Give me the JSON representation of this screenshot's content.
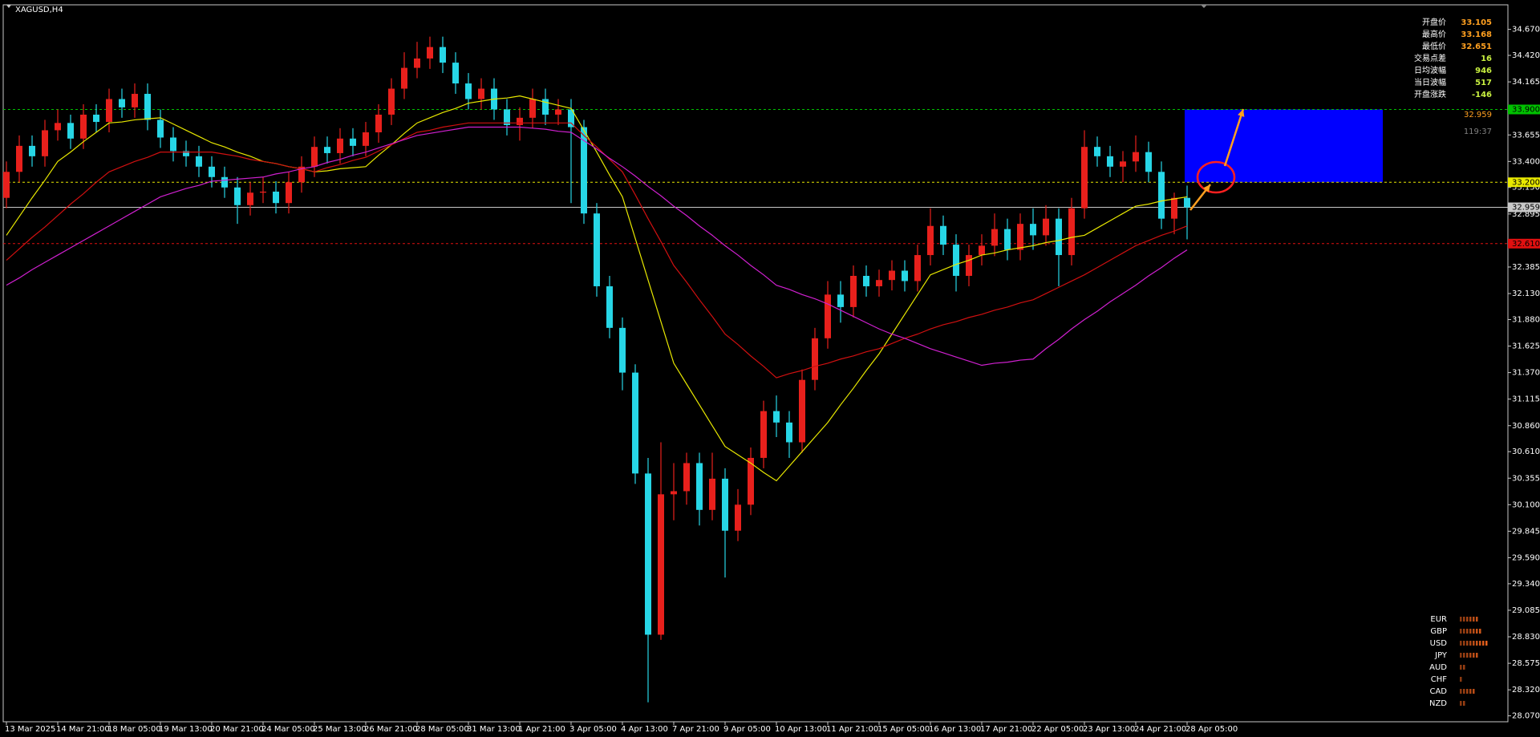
{
  "chart_data": {
    "type": "candlestick",
    "title": "XAGUSD,H4",
    "categories": [
      "13 Mar 2025",
      null,
      null,
      null,
      "14 Mar 21:00",
      null,
      null,
      null,
      "18 Mar 05:00",
      null,
      null,
      null,
      "19 Mar 13:00",
      null,
      null,
      null,
      "20 Mar 21:00",
      null,
      null,
      null,
      "24 Mar 05:00",
      null,
      null,
      null,
      "25 Mar 13:00",
      null,
      null,
      null,
      "26 Mar 21:00",
      null,
      null,
      null,
      "28 Mar 05:00",
      null,
      null,
      null,
      "31 Mar 13:00",
      null,
      null,
      null,
      "1 Apr 21:00",
      null,
      null,
      null,
      "3 Apr 05:00",
      null,
      null,
      null,
      "4 Apr 13:00",
      null,
      null,
      null,
      "7 Apr 21:00",
      null,
      null,
      null,
      "9 Apr 05:00",
      null,
      null,
      null,
      "10 Apr 13:00",
      null,
      null,
      null,
      "11 Apr 21:00",
      null,
      null,
      null,
      "15 Apr 05:00",
      null,
      null,
      null,
      "16 Apr 13:00",
      null,
      null,
      null,
      "17 Apr 21:00",
      null,
      null,
      null,
      "22 Apr 05:00",
      null,
      null,
      null,
      "23 Apr 13:00",
      null,
      null,
      null,
      "24 Apr 21:00",
      null,
      null,
      null,
      "28 Apr 05:00"
    ],
    "open": [
      33.05,
      33.3,
      33.55,
      33.45,
      33.7,
      33.77,
      33.62,
      33.85,
      33.78,
      34.0,
      33.92,
      34.05,
      33.8,
      33.63,
      33.5,
      33.45,
      33.35,
      33.25,
      33.15,
      32.98,
      33.1,
      33.11,
      33.0,
      33.2,
      33.35,
      33.54,
      33.48,
      33.62,
      33.55,
      33.68,
      33.85,
      34.1,
      34.3,
      34.39,
      34.5,
      34.35,
      34.15,
      34.0,
      34.1,
      33.9,
      33.75,
      33.82,
      34.0,
      33.85,
      33.9,
      33.73,
      32.9,
      32.2,
      31.8,
      31.37,
      30.4,
      28.85,
      30.2,
      30.23,
      30.5,
      30.05,
      30.35,
      29.85,
      30.1,
      30.55,
      31.0,
      30.89,
      30.7,
      31.3,
      31.7,
      32.12,
      32.0,
      32.3,
      32.2,
      32.26,
      32.35,
      32.25,
      32.5,
      32.78,
      32.6,
      32.3,
      32.5,
      32.59,
      32.75,
      32.55,
      32.8,
      32.69,
      32.85,
      32.5,
      32.95,
      33.54,
      33.45,
      33.35,
      33.4,
      33.49,
      33.3,
      32.85,
      33.05
    ],
    "high": [
      33.4,
      33.65,
      33.65,
      33.8,
      33.9,
      33.85,
      33.95,
      33.95,
      34.1,
      34.1,
      34.15,
      34.15,
      33.9,
      33.73,
      33.6,
      33.55,
      33.45,
      33.35,
      33.25,
      33.2,
      33.25,
      33.21,
      33.3,
      33.45,
      33.64,
      33.64,
      33.72,
      33.72,
      33.78,
      33.95,
      34.2,
      34.45,
      34.55,
      34.6,
      34.6,
      34.45,
      34.25,
      34.2,
      34.2,
      34.0,
      33.92,
      34.1,
      34.1,
      34.0,
      34.0,
      33.8,
      33.0,
      32.3,
      31.9,
      31.45,
      30.55,
      30.7,
      30.5,
      30.6,
      30.6,
      30.6,
      30.45,
      30.25,
      30.65,
      31.1,
      31.15,
      31.0,
      31.4,
      31.8,
      32.25,
      32.25,
      32.4,
      32.4,
      32.36,
      32.45,
      32.45,
      32.6,
      32.95,
      32.88,
      32.7,
      32.6,
      32.7,
      32.9,
      32.85,
      32.9,
      32.95,
      32.98,
      32.95,
      33.05,
      33.7,
      33.64,
      33.55,
      33.5,
      33.65,
      33.59,
      33.4,
      33.1,
      33.168
    ],
    "low": [
      32.95,
      33.2,
      33.35,
      33.35,
      33.6,
      33.52,
      33.52,
      33.68,
      33.68,
      33.82,
      33.82,
      33.7,
      33.53,
      33.4,
      33.35,
      33.25,
      33.15,
      33.05,
      32.8,
      32.88,
      33.0,
      32.9,
      32.9,
      33.1,
      33.25,
      33.38,
      33.38,
      33.45,
      33.45,
      33.58,
      33.75,
      34.0,
      34.2,
      34.29,
      34.25,
      34.05,
      33.9,
      33.9,
      33.8,
      33.65,
      33.6,
      33.72,
      33.75,
      33.75,
      33.0,
      32.8,
      32.1,
      31.7,
      31.2,
      30.3,
      28.2,
      28.8,
      29.95,
      30.1,
      29.9,
      29.95,
      29.4,
      29.75,
      30.0,
      30.45,
      30.75,
      30.55,
      30.6,
      31.2,
      31.6,
      31.85,
      31.9,
      32.1,
      32.1,
      32.16,
      32.15,
      32.15,
      32.4,
      32.5,
      32.15,
      32.2,
      32.4,
      32.49,
      32.45,
      32.45,
      32.55,
      32.59,
      32.2,
      32.4,
      32.85,
      33.35,
      33.25,
      33.2,
      33.3,
      33.2,
      32.75,
      32.7,
      32.651
    ],
    "close": [
      33.3,
      33.55,
      33.45,
      33.7,
      33.77,
      33.62,
      33.85,
      33.78,
      34.0,
      33.92,
      34.05,
      33.8,
      33.63,
      33.5,
      33.45,
      33.35,
      33.25,
      33.15,
      32.98,
      33.1,
      33.11,
      33.0,
      33.2,
      33.35,
      33.54,
      33.48,
      33.62,
      33.55,
      33.68,
      33.85,
      34.1,
      34.3,
      34.39,
      34.5,
      34.35,
      34.15,
      34.0,
      34.1,
      33.9,
      33.75,
      33.82,
      34.0,
      33.85,
      33.9,
      33.73,
      32.9,
      32.2,
      31.8,
      31.37,
      30.4,
      28.85,
      30.2,
      30.23,
      30.5,
      30.05,
      30.35,
      29.85,
      30.1,
      30.55,
      31.0,
      30.89,
      30.7,
      31.3,
      31.7,
      32.12,
      32.0,
      32.3,
      32.2,
      32.26,
      32.35,
      32.25,
      32.5,
      32.78,
      32.6,
      32.3,
      32.5,
      32.59,
      32.75,
      32.55,
      32.8,
      32.69,
      32.85,
      32.5,
      32.95,
      33.54,
      33.45,
      33.35,
      33.4,
      33.49,
      33.3,
      32.85,
      33.05,
      32.959
    ],
    "up_color": "#e8201c",
    "down_color": "#27d6e6",
    "series": [
      {
        "color": "#e8e800",
        "values": [
          32.69,
          32.87,
          33.05,
          33.22,
          33.4,
          33.49,
          33.59,
          33.68,
          33.77,
          33.78,
          33.8,
          33.81,
          33.82,
          33.76,
          33.7,
          33.64,
          33.58,
          33.54,
          33.49,
          33.45,
          33.4,
          33.38,
          33.35,
          33.33,
          33.3,
          33.31,
          33.33,
          33.34,
          33.35,
          33.46,
          33.56,
          33.67,
          33.77,
          33.82,
          33.87,
          33.91,
          33.96,
          33.98,
          34.0,
          34.01,
          34.03,
          34.0,
          33.97,
          33.94,
          33.91,
          33.7,
          33.49,
          33.27,
          33.06,
          32.66,
          32.26,
          31.86,
          31.46,
          31.26,
          31.06,
          30.86,
          30.66,
          30.58,
          30.5,
          30.41,
          30.33,
          30.47,
          30.61,
          30.75,
          30.89,
          31.06,
          31.22,
          31.39,
          31.55,
          31.74,
          31.93,
          32.12,
          32.31,
          32.36,
          32.41,
          32.45,
          32.5,
          32.52,
          32.55,
          32.57,
          32.59,
          32.62,
          32.64,
          32.67,
          32.69,
          32.76,
          32.83,
          32.9,
          32.97,
          32.99,
          33.02,
          33.04,
          33.06
        ]
      },
      {
        "color": "#d01010",
        "values": [
          32.45,
          32.56,
          32.67,
          32.77,
          32.88,
          32.99,
          33.09,
          33.2,
          33.3,
          33.35,
          33.4,
          33.44,
          33.49,
          33.49,
          33.49,
          33.49,
          33.49,
          33.47,
          33.45,
          33.42,
          33.4,
          33.38,
          33.35,
          33.33,
          33.3,
          33.34,
          33.37,
          33.41,
          33.44,
          33.5,
          33.56,
          33.62,
          33.68,
          33.7,
          33.73,
          33.75,
          33.77,
          33.77,
          33.77,
          33.77,
          33.77,
          33.77,
          33.77,
          33.77,
          33.77,
          33.65,
          33.54,
          33.42,
          33.3,
          33.08,
          32.85,
          32.63,
          32.4,
          32.24,
          32.07,
          31.91,
          31.74,
          31.64,
          31.53,
          31.43,
          31.32,
          31.36,
          31.39,
          31.43,
          31.46,
          31.5,
          31.53,
          31.57,
          31.6,
          31.65,
          31.7,
          31.74,
          31.79,
          31.83,
          31.86,
          31.9,
          31.93,
          31.97,
          32.0,
          32.04,
          32.07,
          32.13,
          32.19,
          32.25,
          32.31,
          32.38,
          32.45,
          32.52,
          32.59,
          32.64,
          32.69,
          32.73,
          32.78
        ]
      },
      {
        "color": "#d020d0",
        "values": [
          32.21,
          32.28,
          32.36,
          32.43,
          32.5,
          32.57,
          32.64,
          32.71,
          32.78,
          32.85,
          32.92,
          32.99,
          33.06,
          33.1,
          33.14,
          33.17,
          33.21,
          33.22,
          33.23,
          33.24,
          33.25,
          33.28,
          33.3,
          33.33,
          33.35,
          33.39,
          33.42,
          33.46,
          33.49,
          33.53,
          33.57,
          33.61,
          33.65,
          33.67,
          33.69,
          33.71,
          33.73,
          33.73,
          33.73,
          33.73,
          33.73,
          33.72,
          33.71,
          33.69,
          33.68,
          33.6,
          33.52,
          33.43,
          33.35,
          33.26,
          33.16,
          33.07,
          32.97,
          32.88,
          32.78,
          32.69,
          32.59,
          32.5,
          32.4,
          32.31,
          32.21,
          32.17,
          32.12,
          32.08,
          32.03,
          31.97,
          31.91,
          31.85,
          31.79,
          31.74,
          31.7,
          31.65,
          31.6,
          31.56,
          31.52,
          31.48,
          31.44,
          31.46,
          31.47,
          31.49,
          31.5,
          31.6,
          31.69,
          31.79,
          31.88,
          31.96,
          32.05,
          32.13,
          32.21,
          32.3,
          32.38,
          32.47,
          32.55
        ]
      }
    ],
    "ylim": [
      28.013,
      34.906
    ],
    "yticks": [
      {
        "value": 34.67,
        "label": "34.670"
      },
      {
        "value": 34.42,
        "label": "34.420"
      },
      34.165,
      33.655,
      {
        "value": 33.4,
        "label": "33.400"
      },
      {
        "value": 33.15,
        "label": "33.150"
      },
      32.895,
      32.385,
      {
        "value": 32.13,
        "label": "32.130"
      },
      {
        "value": 31.88,
        "label": "31.880"
      },
      31.625,
      {
        "value": 31.37,
        "label": "31.370"
      },
      31.115,
      {
        "value": 30.86,
        "label": "30.860"
      },
      {
        "value": 30.61,
        "label": "30.610"
      },
      30.355,
      {
        "value": 30.1,
        "label": "30.100"
      },
      29.845,
      {
        "value": 29.59,
        "label": "29.590"
      },
      {
        "value": 29.34,
        "label": "29.340"
      },
      29.085,
      {
        "value": 28.83,
        "label": "28.830"
      },
      28.575,
      {
        "value": 28.32,
        "label": "28.320"
      },
      {
        "value": 28.07,
        "label": "28.070"
      }
    ],
    "levels": [
      {
        "value": 33.9,
        "label": "33.900",
        "color": "#00c000",
        "dashed": true
      },
      {
        "value": 33.2,
        "label": "33.200",
        "color": "#e8e800",
        "dashed": true
      },
      {
        "value": 32.959,
        "label": "32.959",
        "color": "#c8c8c8",
        "dashed": false
      },
      {
        "value": 32.61,
        "label": "32.610",
        "color": "#e01010",
        "dashed": true
      }
    ],
    "zone": {
      "top": 33.9,
      "bottom": 33.2,
      "color": "#0000ff"
    },
    "current_price": 32.959,
    "countdown": "119:37"
  },
  "info_panel": [
    {
      "label": "开盘价",
      "value": 33.105
    },
    {
      "label": "最高价",
      "value": 33.168
    },
    {
      "label": "最低价",
      "value": 32.651
    },
    {
      "label": "交易点差",
      "value": 16
    },
    {
      "label": "日均波幅",
      "value": 946
    },
    {
      "label": "当日波幅",
      "value": 517
    },
    {
      "label": "开盘涨跌",
      "value": -146
    }
  ],
  "currency_strength": {
    "bar_color": "#e8601c",
    "items": [
      {
        "name": "EUR",
        "value": 6
      },
      {
        "name": "GBP",
        "value": 7
      },
      {
        "name": "USD",
        "value": 9
      },
      {
        "name": "JPY",
        "value": 6
      },
      {
        "name": "AUD",
        "value": 2
      },
      {
        "name": "CHF",
        "value": 1
      },
      {
        "name": "CAD",
        "value": 5
      },
      {
        "name": "NZD",
        "value": 2
      }
    ]
  }
}
